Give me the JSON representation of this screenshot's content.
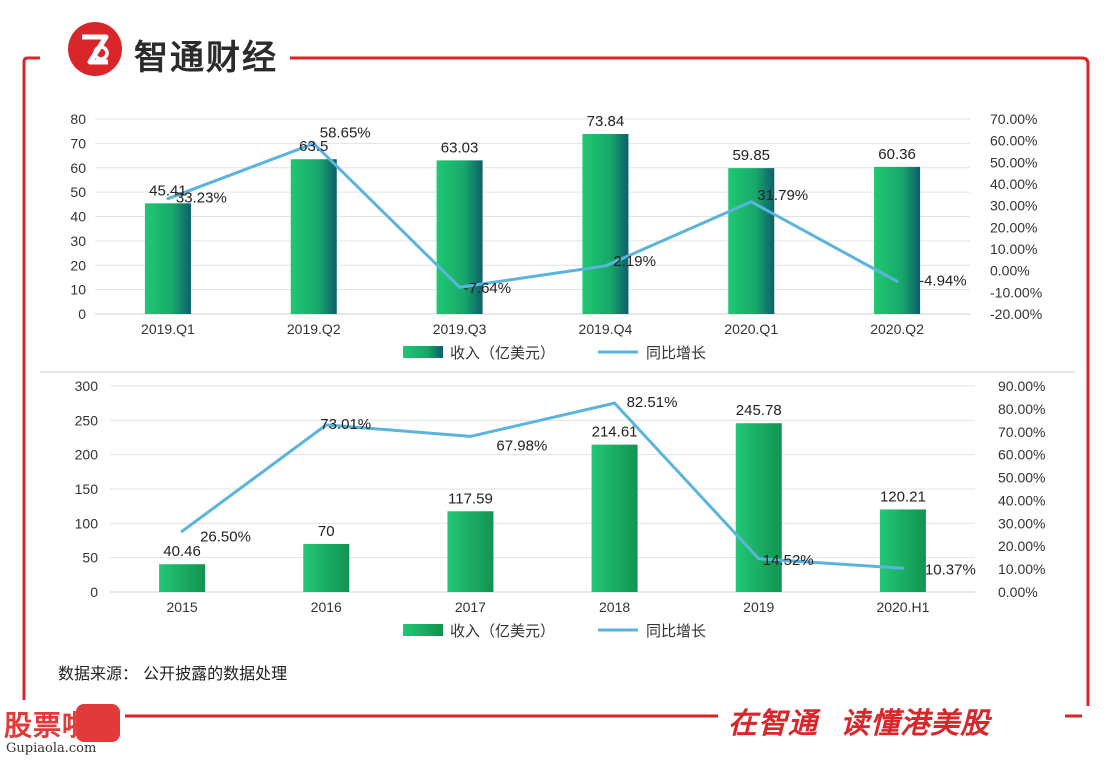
{
  "header": {
    "brand_name": "智通财经",
    "brand_color": "#d9262b"
  },
  "chart_data": [
    {
      "type": "bar",
      "categories": [
        "2019.Q1",
        "2019.Q2",
        "2019.Q3",
        "2019.Q4",
        "2020.Q1",
        "2020.Q2"
      ],
      "series": [
        {
          "name": "收入（亿美元）",
          "type": "bar",
          "values": [
            45.41,
            63.5,
            63.03,
            73.84,
            59.85,
            60.36
          ],
          "labels": [
            "45.41",
            "63.5",
            "63.03",
            "73.84",
            "59.85",
            "60.36"
          ],
          "axis": "left",
          "color": "#1dbf6e"
        },
        {
          "name": "同比增长",
          "type": "line",
          "values": [
            33.23,
            58.65,
            -7.64,
            2.19,
            31.79,
            -4.94
          ],
          "labels": [
            "33.23%",
            "58.65%",
            "-7.64%",
            "2.19%",
            "31.79%",
            "-4.94%"
          ],
          "axis": "right",
          "color": "#5ab4dc"
        }
      ],
      "y_left": {
        "min": 0,
        "max": 80,
        "ticks": [
          "0",
          "10",
          "20",
          "30",
          "40",
          "50",
          "60",
          "70",
          "80"
        ]
      },
      "y_right": {
        "min": -20,
        "max": 70,
        "ticks": [
          "-20.00%",
          "-10.00%",
          "0.00%",
          "10.00%",
          "20.00%",
          "30.00%",
          "40.00%",
          "50.00%",
          "60.00%",
          "70.00%"
        ]
      },
      "grid": true,
      "legend": "bottom"
    },
    {
      "type": "bar",
      "categories": [
        "2015",
        "2016",
        "2017",
        "2018",
        "2019",
        "2020.H1"
      ],
      "series": [
        {
          "name": "收入（亿美元）",
          "type": "bar",
          "values": [
            40.46,
            70,
            117.59,
            214.61,
            245.78,
            120.21
          ],
          "labels": [
            "40.46",
            "70",
            "117.59",
            "214.61",
            "245.78",
            "120.21"
          ],
          "axis": "left",
          "color": "#1dbf6e"
        },
        {
          "name": "同比增长",
          "type": "line",
          "values": [
            26.5,
            73.01,
            67.98,
            82.51,
            14.52,
            10.37
          ],
          "labels": [
            "26.50%",
            "73.01%",
            "67.98%",
            "82.51%",
            "14.52%",
            "10.37%"
          ],
          "axis": "right",
          "color": "#5ab4dc"
        }
      ],
      "y_left": {
        "min": 0,
        "max": 300,
        "ticks": [
          "0",
          "50",
          "100",
          "150",
          "200",
          "250",
          "300"
        ]
      },
      "y_right": {
        "min": 0,
        "max": 90,
        "ticks": [
          "0.00%",
          "10.00%",
          "20.00%",
          "30.00%",
          "40.00%",
          "50.00%",
          "60.00%",
          "70.00%",
          "80.00%",
          "90.00%"
        ]
      },
      "grid": true,
      "legend": "bottom"
    }
  ],
  "footer": {
    "source_note": "数据来源：  公开披露的数据处理",
    "watermark_text": "股票啦",
    "watermark_site": "Gupiaola.com",
    "slogan": "在智通  读懂港美股"
  }
}
